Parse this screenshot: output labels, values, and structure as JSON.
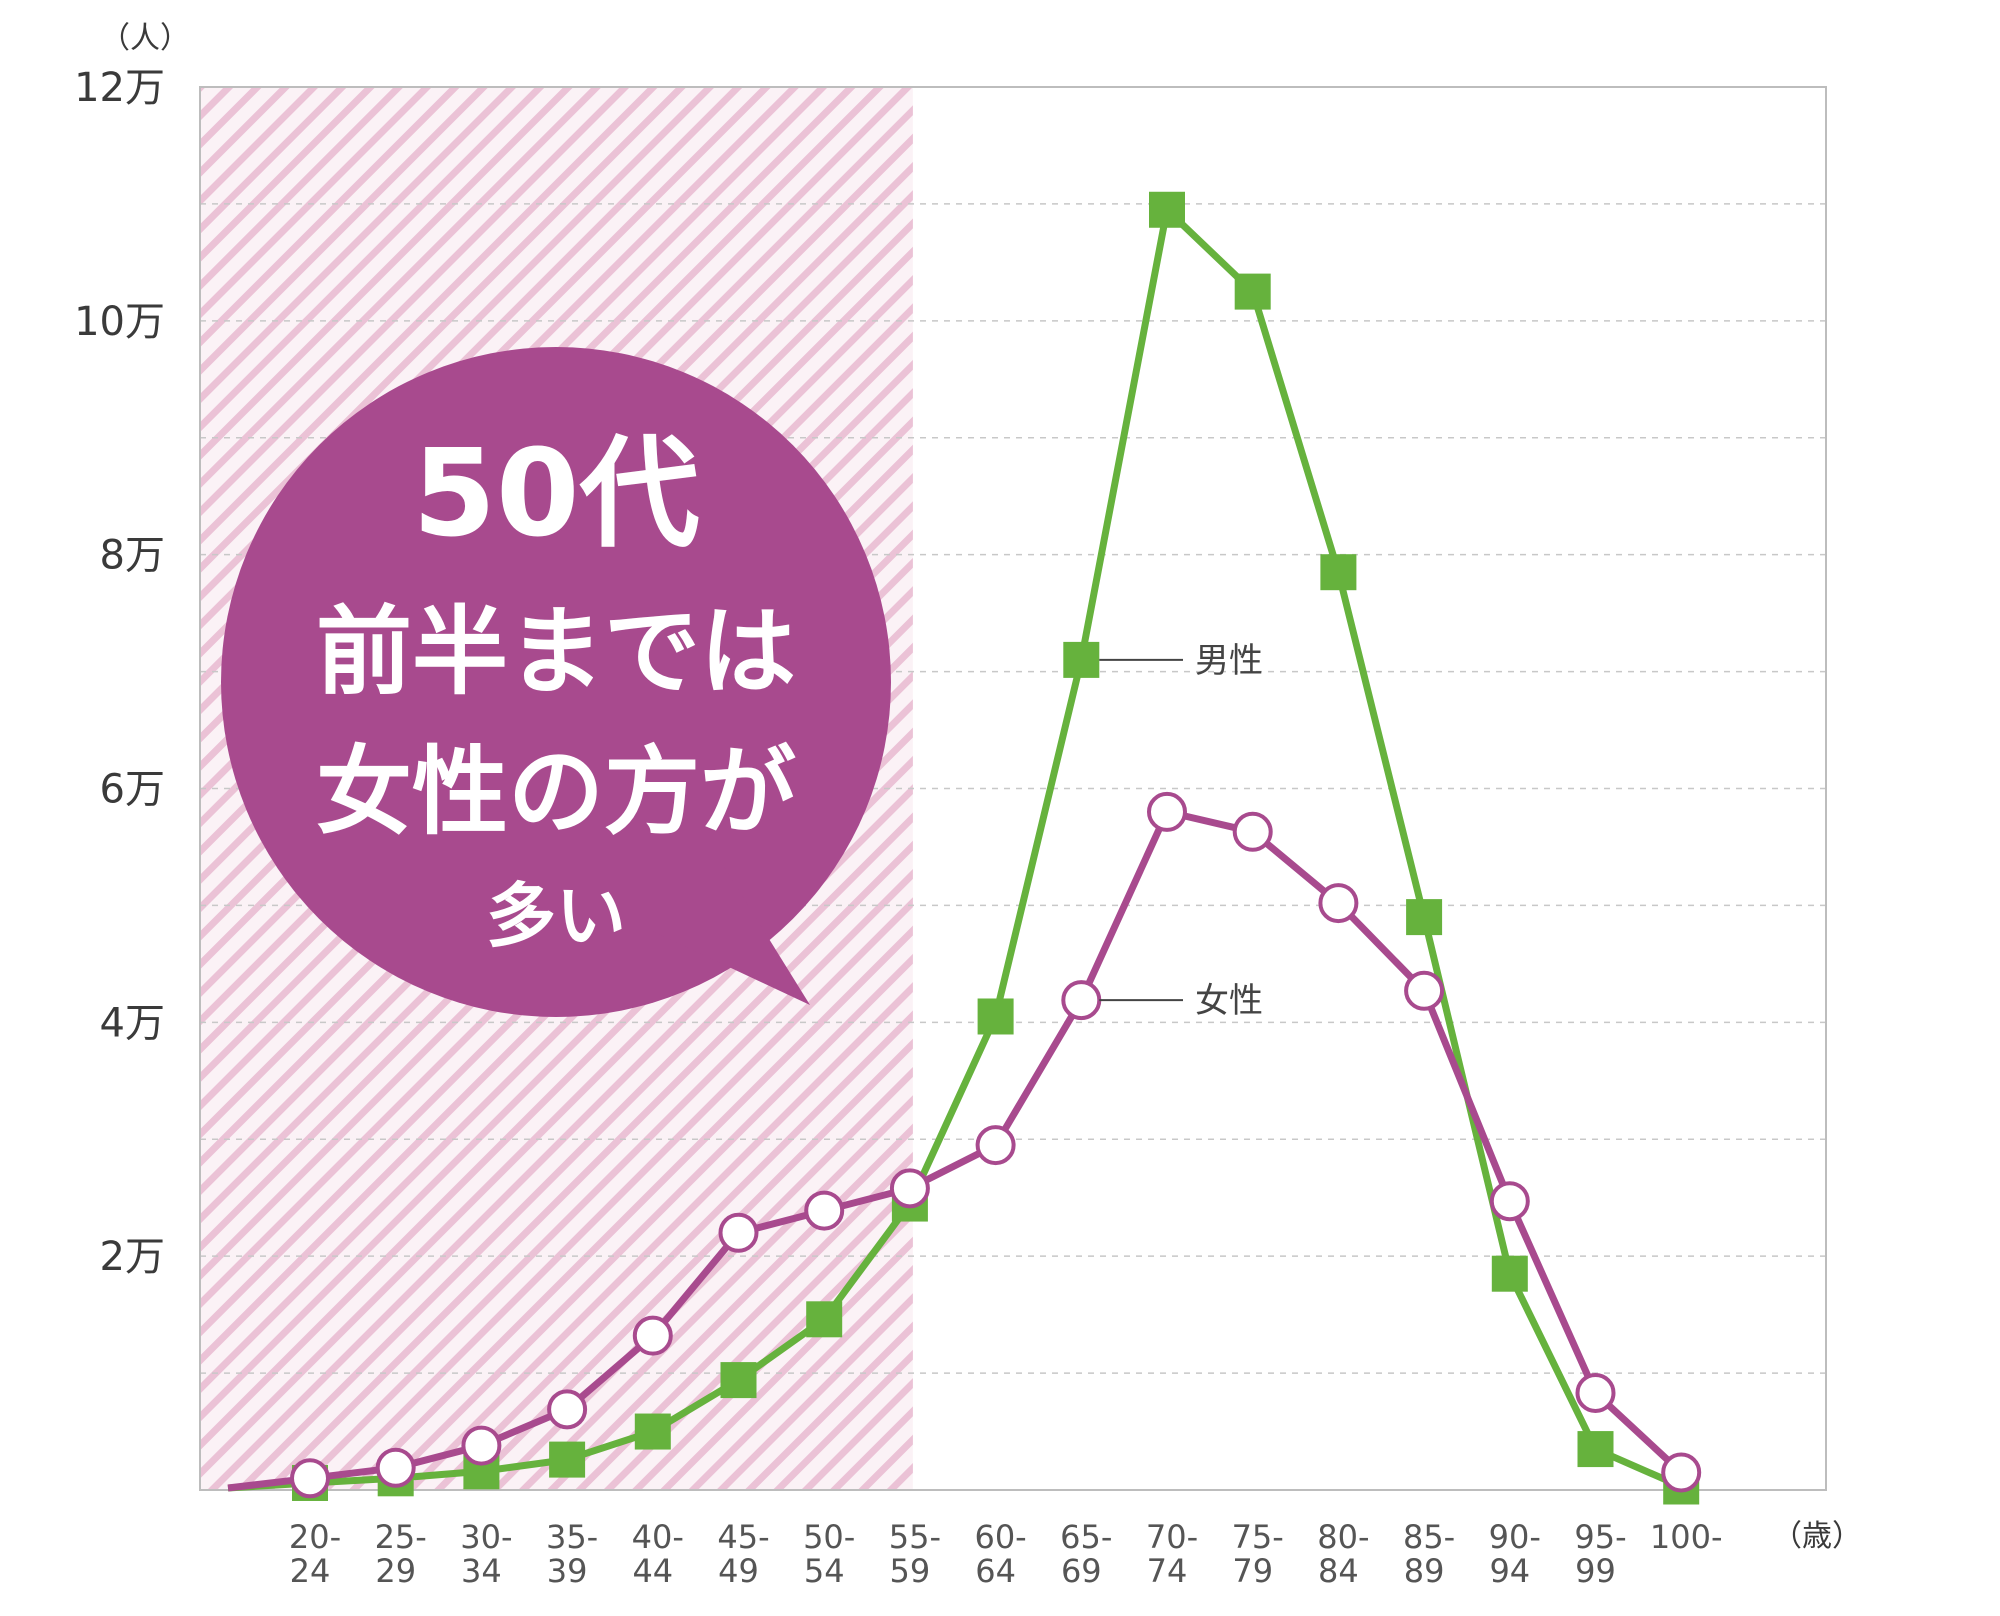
{
  "chart_data": {
    "type": "line",
    "ylabel": "（人）",
    "xlabel": "（歳）",
    "ylim": [
      0,
      120000
    ],
    "yticks": [
      {
        "value": 20000,
        "label": "2万"
      },
      {
        "value": 40000,
        "label": "4万"
      },
      {
        "value": 60000,
        "label": "6万"
      },
      {
        "value": 80000,
        "label": "8万"
      },
      {
        "value": 100000,
        "label": "10万"
      },
      {
        "value": 120000,
        "label": "12万"
      }
    ],
    "grid": "dashed horizontal every 10000",
    "categories": [
      {
        "top": "20-",
        "bottom": "24"
      },
      {
        "top": "25-",
        "bottom": "29"
      },
      {
        "top": "30-",
        "bottom": "34"
      },
      {
        "top": "35-",
        "bottom": "39"
      },
      {
        "top": "40-",
        "bottom": "44"
      },
      {
        "top": "45-",
        "bottom": "49"
      },
      {
        "top": "50-",
        "bottom": "54"
      },
      {
        "top": "55-",
        "bottom": "59"
      },
      {
        "top": "60-",
        "bottom": "64"
      },
      {
        "top": "65-",
        "bottom": "69"
      },
      {
        "top": "70-",
        "bottom": "74"
      },
      {
        "top": "75-",
        "bottom": "79"
      },
      {
        "top": "80-",
        "bottom": "84"
      },
      {
        "top": "85-",
        "bottom": "89"
      },
      {
        "top": "90-",
        "bottom": "94"
      },
      {
        "top": "95-",
        "bottom": "99"
      },
      {
        "top": "100-",
        "bottom": ""
      }
    ],
    "series": [
      {
        "name": "男性",
        "color": "#66b23d",
        "marker": "square",
        "values": [
          600,
          1000,
          1600,
          2600,
          5000,
          9400,
          14600,
          24500,
          40500,
          71000,
          109500,
          102500,
          78500,
          49000,
          18500,
          3500,
          300
        ]
      },
      {
        "name": "女性",
        "color": "#a84a8e",
        "marker": "open-circle",
        "values": [
          1000,
          1900,
          3800,
          6900,
          13200,
          22000,
          23900,
          25800,
          29500,
          41900,
          58000,
          56300,
          50200,
          42700,
          24700,
          8300,
          1500
        ]
      }
    ],
    "highlight_range": {
      "from": "20-24",
      "to": "55-59",
      "pattern": "diagonal pink stripes"
    },
    "callout": {
      "color": "#a84a8e",
      "lines": [
        "50代",
        "前半までは",
        "女性の方が",
        "多い"
      ]
    }
  }
}
